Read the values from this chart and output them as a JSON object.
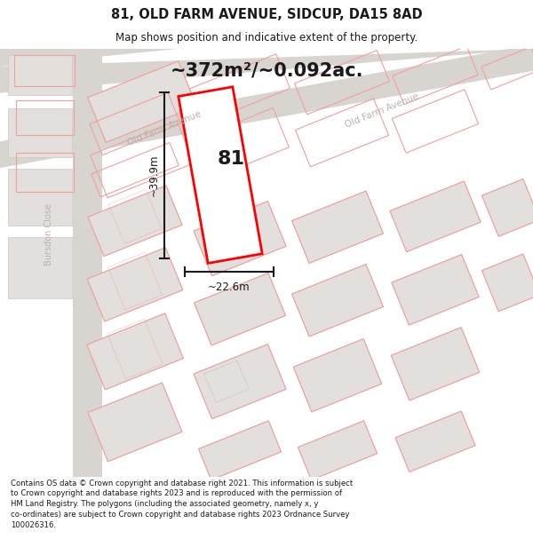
{
  "title": "81, OLD FARM AVENUE, SIDCUP, DA15 8AD",
  "subtitle": "Map shows position and indicative extent of the property.",
  "area_label": "~372m²/~0.092ac.",
  "width_label": "~22.6m",
  "height_label": "~39.9m",
  "plot_number": "81",
  "footer_text": "Contains OS data © Crown copyright and database right 2021. This information is subject to Crown copyright and database rights 2023 and is reproduced with the permission of HM Land Registry. The polygons (including the associated geometry, namely x, y co-ordinates) are subject to Crown copyright and database rights 2023 Ordnance Survey 100026316.",
  "bg_color": "#f5f3f1",
  "road_color": "#d8d4d0",
  "building_fill": "#e2dfdc",
  "building_edge": "#ccc8c4",
  "plot_edge_light": "#f0a0a0",
  "plot_edge_main": "#ff0000",
  "street_label_color": "#b8b2ac",
  "dim_color": "#1a1a1a",
  "title_color": "#1a1a1a",
  "footer_color": "#1a1a1a",
  "white": "#ffffff"
}
